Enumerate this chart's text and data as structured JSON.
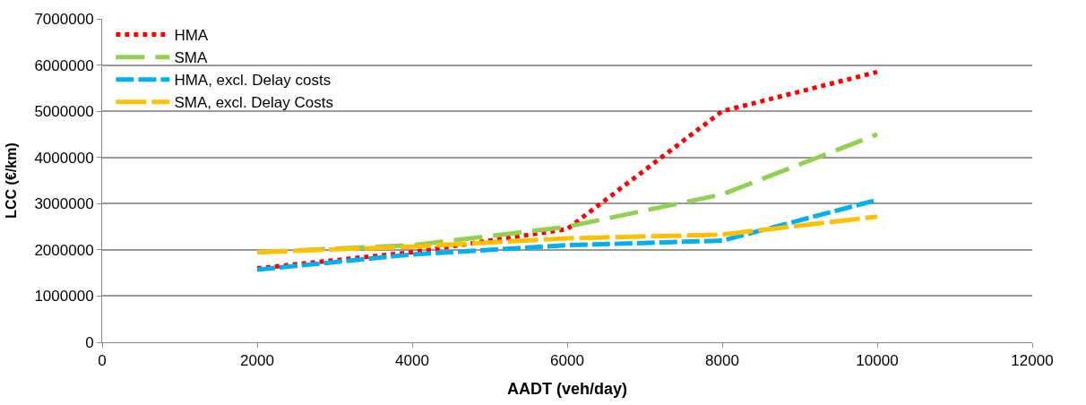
{
  "chart_data": {
    "type": "line",
    "xlabel": "AADT (veh/day)",
    "ylabel": "LCC (€/km)",
    "x": [
      2000,
      4000,
      6000,
      8000,
      10000
    ],
    "series": [
      {
        "name": "HMA",
        "color": "#ff0000",
        "values": [
          1600000,
          1950000,
          2450000,
          5000000,
          5850000
        ],
        "line_style": "dotted"
      },
      {
        "name": "SMA",
        "color": "#92d050",
        "values": [
          1950000,
          2100000,
          2500000,
          3200000,
          4500000
        ],
        "line_style": "dashed"
      },
      {
        "name": "HMA, excl. Delay costs",
        "color": "#00b0f0",
        "values": [
          1570000,
          1900000,
          2100000,
          2200000,
          3080000
        ],
        "line_style": "dashed"
      },
      {
        "name": "SMA, excl. Delay Costs",
        "color": "#ffc000",
        "values": [
          1950000,
          2070000,
          2250000,
          2330000,
          2720000
        ],
        "line_style": "dashed"
      }
    ],
    "xlim": [
      0,
      12000
    ],
    "xticks": [
      0,
      2000,
      4000,
      6000,
      8000,
      10000,
      12000
    ],
    "ylim": [
      0,
      7000000
    ],
    "yticks": [
      0,
      1000000,
      2000000,
      3000000,
      4000000,
      5000000,
      6000000,
      7000000
    ],
    "grid": "y",
    "legend": "top left",
    "marker": "none"
  }
}
